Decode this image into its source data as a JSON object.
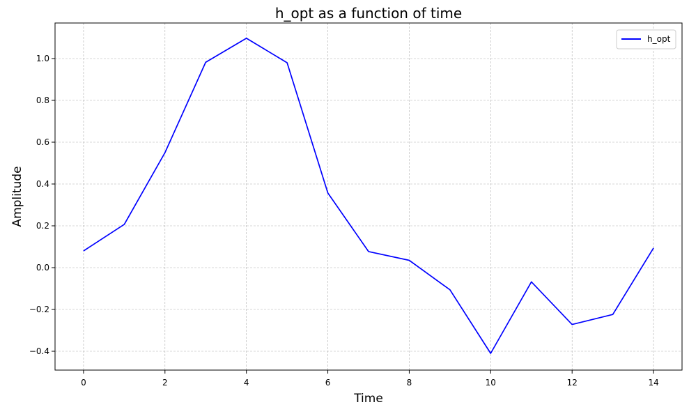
{
  "chart_data": {
    "type": "line",
    "title": "h_opt as a function of time",
    "xlabel": "Time",
    "ylabel": "Amplitude",
    "xlim": [
      -0.7,
      14.7
    ],
    "ylim": [
      -0.49,
      1.17
    ],
    "xticks": [
      0,
      2,
      4,
      6,
      8,
      10,
      12,
      14
    ],
    "yticks": [
      -0.4,
      -0.2,
      0.0,
      0.2,
      0.4,
      0.6,
      0.8,
      1.0
    ],
    "ytick_labels": [
      "−0.4",
      "−0.2",
      "0.0",
      "0.2",
      "0.4",
      "0.6",
      "0.8",
      "1.0"
    ],
    "grid": true,
    "legend_position": "top-right",
    "series": [
      {
        "name": "h_opt",
        "color": "#0000ff",
        "x": [
          0,
          1,
          2,
          3,
          4,
          5,
          6,
          7,
          8,
          9,
          10,
          11,
          12,
          13,
          14
        ],
        "values": [
          0.08,
          0.207,
          0.55,
          0.982,
          1.097,
          0.98,
          0.357,
          0.077,
          0.035,
          -0.106,
          -0.41,
          -0.068,
          -0.272,
          -0.224,
          0.094
        ]
      }
    ]
  }
}
